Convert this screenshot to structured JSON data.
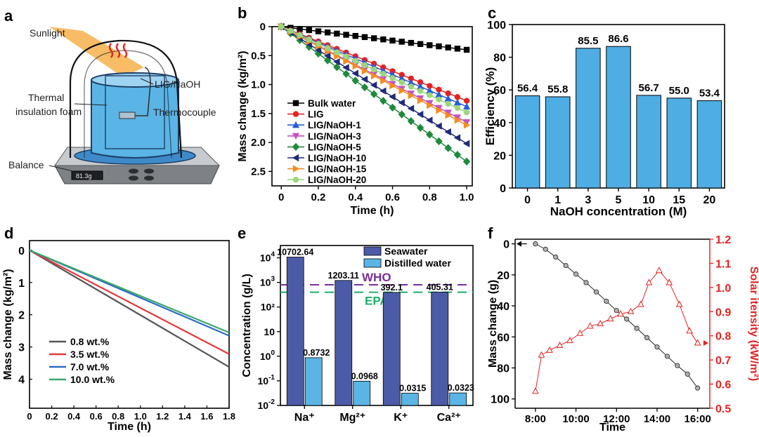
{
  "panels": {
    "a": "a",
    "b": "b",
    "c": "c",
    "d": "d",
    "e": "e",
    "f": "f"
  },
  "schematic": {
    "sunlight": "Sunlight",
    "sample": "LIG/NaOH",
    "foam_line1": "Thermal",
    "foam_line2": "insulation foam",
    "thermocouple": "Thermocouple",
    "balance": "Balance",
    "balance_reading": "81.3g"
  },
  "colors": {
    "sky_blue": "#5AB4E5",
    "bar_blue": "#4EAEE3",
    "navy": "#4B5BA8",
    "red": "#E52222",
    "purple": "#7B2D9A",
    "green": "#1AAE6A"
  },
  "chart_data": [
    {
      "id": "b",
      "type": "line",
      "xlabel": "Time (h)",
      "ylabel": "Mass change (kg/m²)",
      "xlim": [
        -0.05,
        1.03
      ],
      "ylim": [
        0,
        2.75
      ],
      "y_inverted": true,
      "xticks": [
        "0",
        "0.2",
        "0.4",
        "0.6",
        "0.8",
        "1.0"
      ],
      "xtick_values": [
        0,
        0.2,
        0.4,
        0.6,
        0.8,
        1.0
      ],
      "yticks": [
        "0",
        "0.5",
        "1.0",
        "1.5",
        "2.0",
        "2.5"
      ],
      "ytick_values": [
        0,
        0.5,
        1.0,
        1.5,
        2.0,
        2.5
      ],
      "x": [
        0,
        0.05,
        0.1,
        0.15,
        0.2,
        0.25,
        0.3,
        0.35,
        0.4,
        0.45,
        0.5,
        0.55,
        0.6,
        0.65,
        0.7,
        0.75,
        0.8,
        0.85,
        0.9,
        0.95,
        1.0
      ],
      "series": [
        {
          "name": "Bulk water",
          "color": "#000000",
          "marker": "square",
          "end": 0.4
        },
        {
          "name": "LIG",
          "color": "#E52222",
          "marker": "circle",
          "end": 1.28
        },
        {
          "name": "LIG/NaOH-1",
          "color": "#2A5BD7",
          "marker": "triangle-up",
          "end": 1.38
        },
        {
          "name": "LIG/NaOH-3",
          "color": "#C452C4",
          "marker": "triangle-down",
          "end": 1.65
        },
        {
          "name": "LIG/NaOH-5",
          "color": "#1E8A3C",
          "marker": "diamond",
          "end": 2.33
        },
        {
          "name": "LIG/NaOH-10",
          "color": "#1F2A7A",
          "marker": "triangle-left",
          "end": 2.02
        },
        {
          "name": "LIG/NaOH-15",
          "color": "#F28C1E",
          "marker": "triangle-right",
          "end": 1.7
        },
        {
          "name": "LIG/NaOH-20",
          "color": "#9BD77A",
          "marker": "circle",
          "end": 1.48
        }
      ]
    },
    {
      "id": "c",
      "type": "bar",
      "xlabel": "NaOH concentration (M)",
      "ylabel": "Efficiency (%)",
      "ylim": [
        0,
        100
      ],
      "yticks": [
        "0",
        "20",
        "40",
        "60",
        "80",
        "100"
      ],
      "ytick_values": [
        0,
        20,
        40,
        60,
        80,
        100
      ],
      "categories": [
        "0",
        "1",
        "3",
        "5",
        "10",
        "15",
        "20"
      ],
      "values": [
        56.4,
        55.8,
        85.5,
        86.6,
        56.7,
        55.0,
        53.4
      ],
      "value_labels": [
        "56.4",
        "55.8",
        "85.5",
        "86.6",
        "56.7",
        "55.0",
        "53.4"
      ]
    },
    {
      "id": "d",
      "type": "line",
      "xlabel": "Time (h)",
      "ylabel": "Mass change (kg/m²)",
      "xlim": [
        0,
        1.8
      ],
      "ylim": [
        -0.3,
        4.9
      ],
      "y_inverted": true,
      "xticks": [
        "0",
        "0.2",
        "0.4",
        "0.6",
        "0.8",
        "1.0",
        "1.2",
        "1.4",
        "1.6",
        "1.8"
      ],
      "xtick_values": [
        0,
        0.2,
        0.4,
        0.6,
        0.8,
        1.0,
        1.2,
        1.4,
        1.6,
        1.8
      ],
      "yticks": [
        "0",
        "1",
        "2",
        "3",
        "4"
      ],
      "ytick_values": [
        0,
        1,
        2,
        3,
        4
      ],
      "series": [
        {
          "name": "0.8 wt.%",
          "color": "#555555",
          "start": 0,
          "end": 3.62
        },
        {
          "name": "3.5 wt.%",
          "color": "#E5383B",
          "start": 0,
          "end": 3.22
        },
        {
          "name": "7.0 wt.%",
          "color": "#2B6CC4",
          "start": 0,
          "end": 2.65
        },
        {
          "name": "10.0 wt.%",
          "color": "#3AA86B",
          "start": 0,
          "end": 2.55
        }
      ]
    },
    {
      "id": "e",
      "type": "bar",
      "xlabel": "",
      "ylabel": "Concentration (g/L)",
      "y_scale": "log",
      "ylim_exp": [
        -2,
        4.5
      ],
      "ytick_bases": [
        "10",
        "10",
        "10",
        "1",
        "10",
        "10",
        "10"
      ],
      "ytick_sups": [
        "-2",
        "-1",
        "0",
        "",
        "",
        "3",
        "4"
      ],
      "ytick_exps": [
        -2,
        -1,
        0,
        1,
        2,
        3,
        4
      ],
      "ytick_plain": [
        "",
        "",
        "",
        "10",
        "10²",
        "",
        ""
      ],
      "categories": [
        "Na⁺",
        "Mg²⁺",
        "K⁺",
        "Ca²⁺"
      ],
      "series": [
        {
          "name": "Seawater",
          "color": "#4B5BA8",
          "values": [
            10702.64,
            1203.11,
            392.1,
            405.31
          ],
          "labels": [
            "10702.64",
            "1203.11",
            "392.1",
            "405.31"
          ]
        },
        {
          "name": "Distilled water",
          "color": "#5AB4E5",
          "values": [
            0.8732,
            0.0968,
            0.0315,
            0.0323
          ],
          "labels": [
            "0.8732",
            "0.0968",
            "0.0315",
            "0.0323"
          ]
        }
      ],
      "reference_lines": [
        {
          "name": "WHO",
          "value": 800,
          "color": "#7B2D9A"
        },
        {
          "name": "EPA",
          "value": 400,
          "color": "#1AAE6A"
        }
      ]
    },
    {
      "id": "f",
      "type": "line",
      "xlabel": "Time",
      "ylabel": "Mass change (g)",
      "ylabel_right": "Solar itensity (kW/m²)",
      "xlim": [
        7.0,
        16.6
      ],
      "xticks": [
        "8:00",
        "10:00",
        "12:00",
        "14:00",
        "16:00"
      ],
      "xtick_values": [
        8,
        10,
        12,
        14,
        16
      ],
      "ylim_left": [
        -3,
        106
      ],
      "y_inverted": true,
      "yticks_left": [
        "0",
        "20",
        "40",
        "60",
        "80",
        "100"
      ],
      "ytick_values_left": [
        0,
        20,
        40,
        60,
        80,
        100
      ],
      "ylim_right": [
        0.5,
        1.2
      ],
      "yticks_right": [
        "0.5",
        "0.6",
        "0.7",
        "0.8",
        "0.9",
        "1.0",
        "1.1",
        "1.2"
      ],
      "ytick_values_right": [
        0.5,
        0.6,
        0.7,
        0.8,
        0.9,
        1.0,
        1.1,
        1.2
      ],
      "series": [
        {
          "name": "Mass change",
          "axis": "left",
          "color": "#222222",
          "x": [
            8,
            8.5,
            9,
            9.5,
            10,
            10.5,
            11,
            11.5,
            12,
            12.5,
            13,
            13.5,
            14,
            14.5,
            15,
            15.5,
            16
          ],
          "y": [
            0,
            3.5,
            8.5,
            14,
            19.5,
            25,
            31,
            37,
            43,
            48.5,
            54.5,
            60.5,
            66.5,
            72.5,
            78.5,
            84,
            93
          ]
        },
        {
          "name": "Solar intensity",
          "axis": "right",
          "color": "#E52222",
          "x": [
            8,
            8.3,
            8.7,
            9.2,
            9.7,
            10.2,
            10.7,
            11.2,
            11.7,
            12.2,
            12.7,
            13.2,
            13.6,
            14.1,
            14.6,
            15.1,
            15.6,
            16
          ],
          "y": [
            0.57,
            0.72,
            0.74,
            0.76,
            0.78,
            0.81,
            0.84,
            0.85,
            0.87,
            0.89,
            0.9,
            0.93,
            1.02,
            1.07,
            1.02,
            0.93,
            0.82,
            0.77
          ]
        }
      ]
    }
  ]
}
